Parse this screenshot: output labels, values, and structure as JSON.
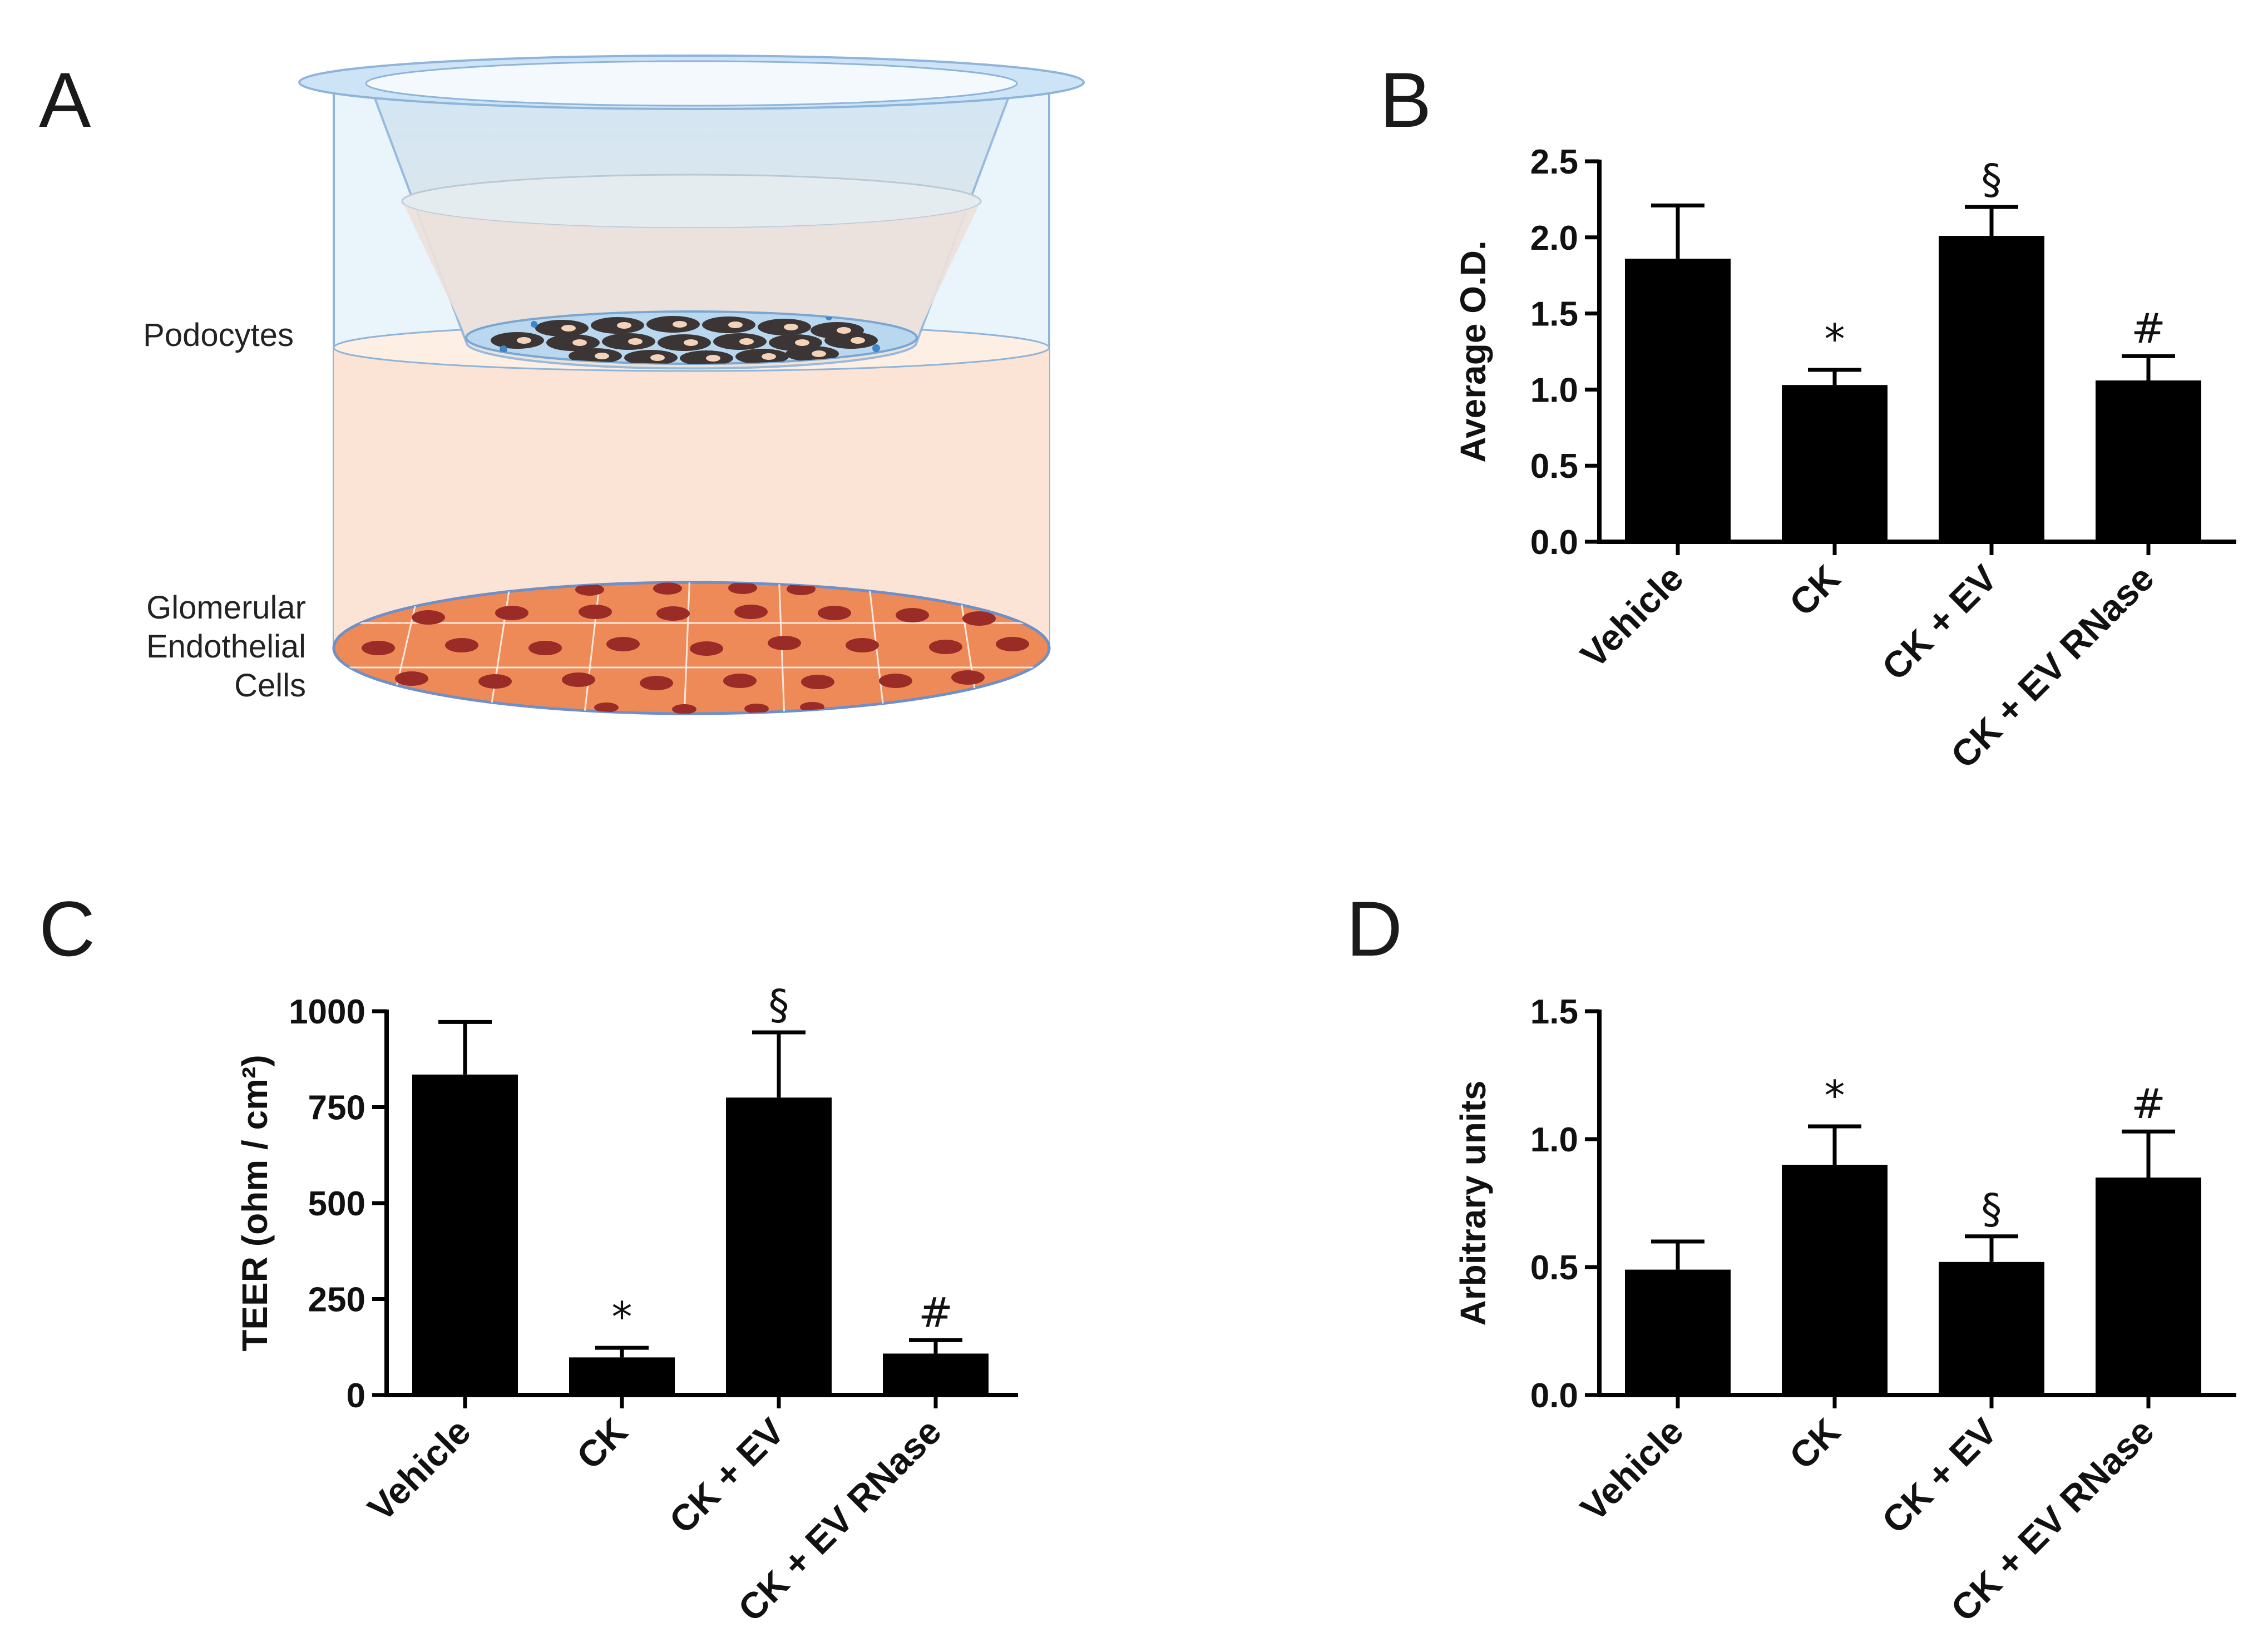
{
  "panel_letters": {
    "a": "A",
    "b": "B",
    "c": "C",
    "d": "D"
  },
  "schematic": {
    "podocytes_label": "Podocytes",
    "endothelial_label_lines": [
      "Glomerular",
      "Endothelial",
      "Cells"
    ],
    "colors": {
      "insert": "#d6ebf8",
      "medium": "#fbe3d5",
      "endothelial": "#ee8a58",
      "nucleus": "#9b2b26",
      "podocyte": "#3b3535"
    }
  },
  "chart_data": [
    {
      "id": "B",
      "type": "bar",
      "categories": [
        "Vehicle",
        "CK",
        "CK + EV",
        "CK + EV RNase"
      ],
      "values": [
        1.86,
        1.03,
        2.01,
        1.06
      ],
      "errors": [
        0.35,
        0.1,
        0.19,
        0.16
      ],
      "significance": [
        "",
        "*",
        "§",
        "#"
      ],
      "ylabel": "Average O.D.",
      "ylim": [
        0,
        2.5
      ],
      "yticks": [
        0,
        0.5,
        1,
        1.5,
        2,
        2.5
      ],
      "ytick_labels": [
        "0.0",
        "0.5",
        "1.0",
        "1.5",
        "2.0",
        "2.5"
      ]
    },
    {
      "id": "C",
      "type": "bar",
      "categories": [
        "Vehicle",
        "CK",
        "CK + EV",
        "CK + EV RNase"
      ],
      "values": [
        835,
        98,
        775,
        108
      ],
      "errors": [
        137,
        25,
        170,
        35
      ],
      "significance": [
        "",
        "*",
        "§",
        "#"
      ],
      "ylabel": "TEER (ohm / cm²)",
      "ylim": [
        0,
        1000
      ],
      "yticks": [
        0,
        250,
        500,
        750,
        1000
      ],
      "ytick_labels": [
        "0",
        "250",
        "500",
        "750",
        "1000"
      ]
    },
    {
      "id": "D",
      "type": "bar",
      "categories": [
        "Vehicle",
        "CK",
        "CK + EV",
        "CK + EV RNase"
      ],
      "values": [
        0.49,
        0.9,
        0.52,
        0.85
      ],
      "errors": [
        0.11,
        0.15,
        0.1,
        0.18
      ],
      "significance": [
        "",
        "*",
        "§",
        "#"
      ],
      "ylabel": "Arbitrary units",
      "ylim": [
        0,
        1.5
      ],
      "yticks": [
        0,
        0.5,
        1,
        1.5
      ],
      "ytick_labels": [
        "0.0",
        "0.5",
        "1.0",
        "1.5"
      ]
    }
  ]
}
